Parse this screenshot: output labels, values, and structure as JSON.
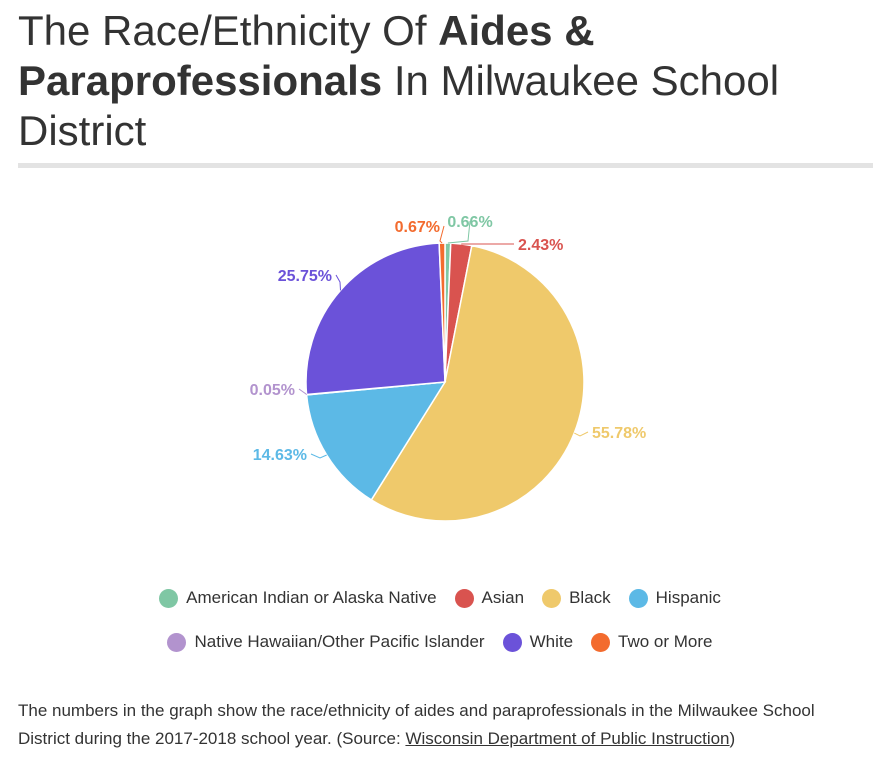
{
  "title": {
    "part1": "The Race/Ethnicity Of ",
    "bold": "Aides & Paraprofessionals",
    "part2": " In Milwaukee School District"
  },
  "caption": {
    "text": "The numbers in the graph show the race/ethnicity of aides and paraprofessionals in the Milwaukee School District during the 2017-2018 school year. (Source: ",
    "link": "Wisconsin Department of Public Instruction",
    "end": ")"
  },
  "chart_data": {
    "type": "pie",
    "title": "The Race/Ethnicity Of Aides & Paraprofessionals In Milwaukee School District",
    "legend_position": "bottom",
    "slices": [
      {
        "name": "American Indian or Alaska Native",
        "value": 0.66,
        "label": "0.66%",
        "color": "#7fc7a4"
      },
      {
        "name": "Asian",
        "value": 2.43,
        "label": "2.43%",
        "color": "#d9534f"
      },
      {
        "name": "Black",
        "value": 55.78,
        "label": "55.78%",
        "color": "#efc96b"
      },
      {
        "name": "Hispanic",
        "value": 14.63,
        "label": "14.63%",
        "color": "#5cb9e6"
      },
      {
        "name": "Native Hawaiian/Other Pacific Islander",
        "value": 0.05,
        "label": "0.05%",
        "color": "#b293ce"
      },
      {
        "name": "White",
        "value": 25.75,
        "label": "25.75%",
        "color": "#6b52d9"
      },
      {
        "name": "Two or More",
        "value": 0.67,
        "label": "0.67%",
        "color": "#f36b2e"
      }
    ]
  }
}
